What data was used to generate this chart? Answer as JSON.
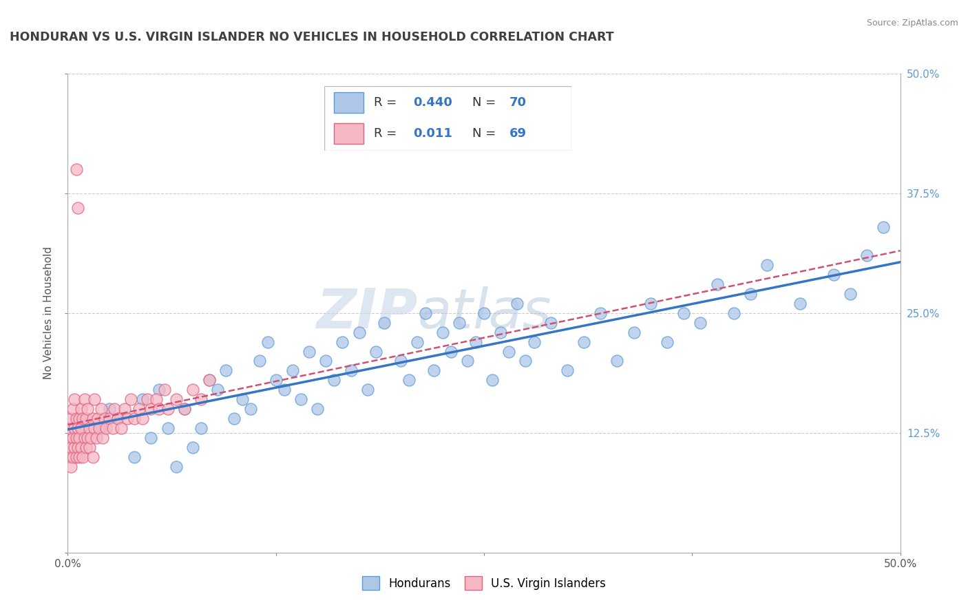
{
  "title": "HONDURAN VS U.S. VIRGIN ISLANDER NO VEHICLES IN HOUSEHOLD CORRELATION CHART",
  "source": "Source: ZipAtlas.com",
  "ylabel": "No Vehicles in Household",
  "x_min": 0.0,
  "x_max": 0.5,
  "y_min": 0.0,
  "y_max": 0.5,
  "grid_color": "#cccccc",
  "watermark_zip": "ZIP",
  "watermark_atlas": "atlas",
  "honduran_fill": "#aec6e8",
  "honduran_edge": "#5b9bd5",
  "virgin_fill": "#f5b8c4",
  "virgin_edge": "#e06080",
  "honduran_line_color": "#3575c3",
  "virgin_line_color": "#d05070",
  "r_honduran": 0.44,
  "n_honduran": 70,
  "r_virgin": 0.011,
  "n_virgin": 69,
  "hondurans_x": [
    0.02,
    0.025,
    0.03,
    0.04,
    0.045,
    0.05,
    0.055,
    0.06,
    0.065,
    0.07,
    0.075,
    0.08,
    0.085,
    0.09,
    0.095,
    0.1,
    0.105,
    0.11,
    0.115,
    0.12,
    0.125,
    0.13,
    0.135,
    0.14,
    0.145,
    0.15,
    0.155,
    0.16,
    0.165,
    0.17,
    0.175,
    0.18,
    0.185,
    0.19,
    0.2,
    0.205,
    0.21,
    0.215,
    0.22,
    0.225,
    0.23,
    0.235,
    0.24,
    0.245,
    0.25,
    0.255,
    0.26,
    0.265,
    0.27,
    0.275,
    0.28,
    0.29,
    0.3,
    0.31,
    0.32,
    0.33,
    0.34,
    0.35,
    0.36,
    0.37,
    0.38,
    0.39,
    0.4,
    0.41,
    0.42,
    0.44,
    0.46,
    0.47,
    0.48,
    0.49
  ],
  "hondurans_y": [
    0.13,
    0.15,
    0.14,
    0.1,
    0.16,
    0.12,
    0.17,
    0.13,
    0.09,
    0.15,
    0.11,
    0.13,
    0.18,
    0.17,
    0.19,
    0.14,
    0.16,
    0.15,
    0.2,
    0.22,
    0.18,
    0.17,
    0.19,
    0.16,
    0.21,
    0.15,
    0.2,
    0.18,
    0.22,
    0.19,
    0.23,
    0.17,
    0.21,
    0.24,
    0.2,
    0.18,
    0.22,
    0.25,
    0.19,
    0.23,
    0.21,
    0.24,
    0.2,
    0.22,
    0.25,
    0.18,
    0.23,
    0.21,
    0.26,
    0.2,
    0.22,
    0.24,
    0.19,
    0.22,
    0.25,
    0.2,
    0.23,
    0.26,
    0.22,
    0.25,
    0.24,
    0.28,
    0.25,
    0.27,
    0.3,
    0.26,
    0.29,
    0.27,
    0.31,
    0.34
  ],
  "virgin_x": [
    0.001,
    0.001,
    0.001,
    0.002,
    0.002,
    0.002,
    0.003,
    0.003,
    0.003,
    0.004,
    0.004,
    0.004,
    0.005,
    0.005,
    0.005,
    0.005,
    0.006,
    0.006,
    0.006,
    0.007,
    0.007,
    0.007,
    0.008,
    0.008,
    0.008,
    0.009,
    0.009,
    0.01,
    0.01,
    0.011,
    0.011,
    0.012,
    0.012,
    0.013,
    0.013,
    0.014,
    0.015,
    0.015,
    0.016,
    0.016,
    0.017,
    0.018,
    0.019,
    0.02,
    0.021,
    0.022,
    0.023,
    0.025,
    0.027,
    0.028,
    0.03,
    0.032,
    0.034,
    0.036,
    0.038,
    0.04,
    0.043,
    0.045,
    0.048,
    0.05,
    0.053,
    0.055,
    0.058,
    0.06,
    0.065,
    0.07,
    0.075,
    0.08,
    0.085
  ],
  "virgin_y": [
    0.1,
    0.12,
    0.13,
    0.09,
    0.11,
    0.14,
    0.1,
    0.12,
    0.15,
    0.11,
    0.13,
    0.16,
    0.1,
    0.12,
    0.14,
    0.4,
    0.11,
    0.13,
    0.36,
    0.1,
    0.12,
    0.14,
    0.11,
    0.13,
    0.15,
    0.1,
    0.14,
    0.12,
    0.16,
    0.11,
    0.14,
    0.12,
    0.15,
    0.11,
    0.13,
    0.12,
    0.1,
    0.14,
    0.13,
    0.16,
    0.12,
    0.14,
    0.13,
    0.15,
    0.12,
    0.14,
    0.13,
    0.14,
    0.13,
    0.15,
    0.14,
    0.13,
    0.15,
    0.14,
    0.16,
    0.14,
    0.15,
    0.14,
    0.16,
    0.15,
    0.16,
    0.15,
    0.17,
    0.15,
    0.16,
    0.15,
    0.17,
    0.16,
    0.18
  ],
  "legend_hondurans": "Hondurans",
  "legend_virgin": "U.S. Virgin Islanders",
  "background_color": "#ffffff",
  "title_color": "#404040",
  "title_fontsize": 12.5
}
